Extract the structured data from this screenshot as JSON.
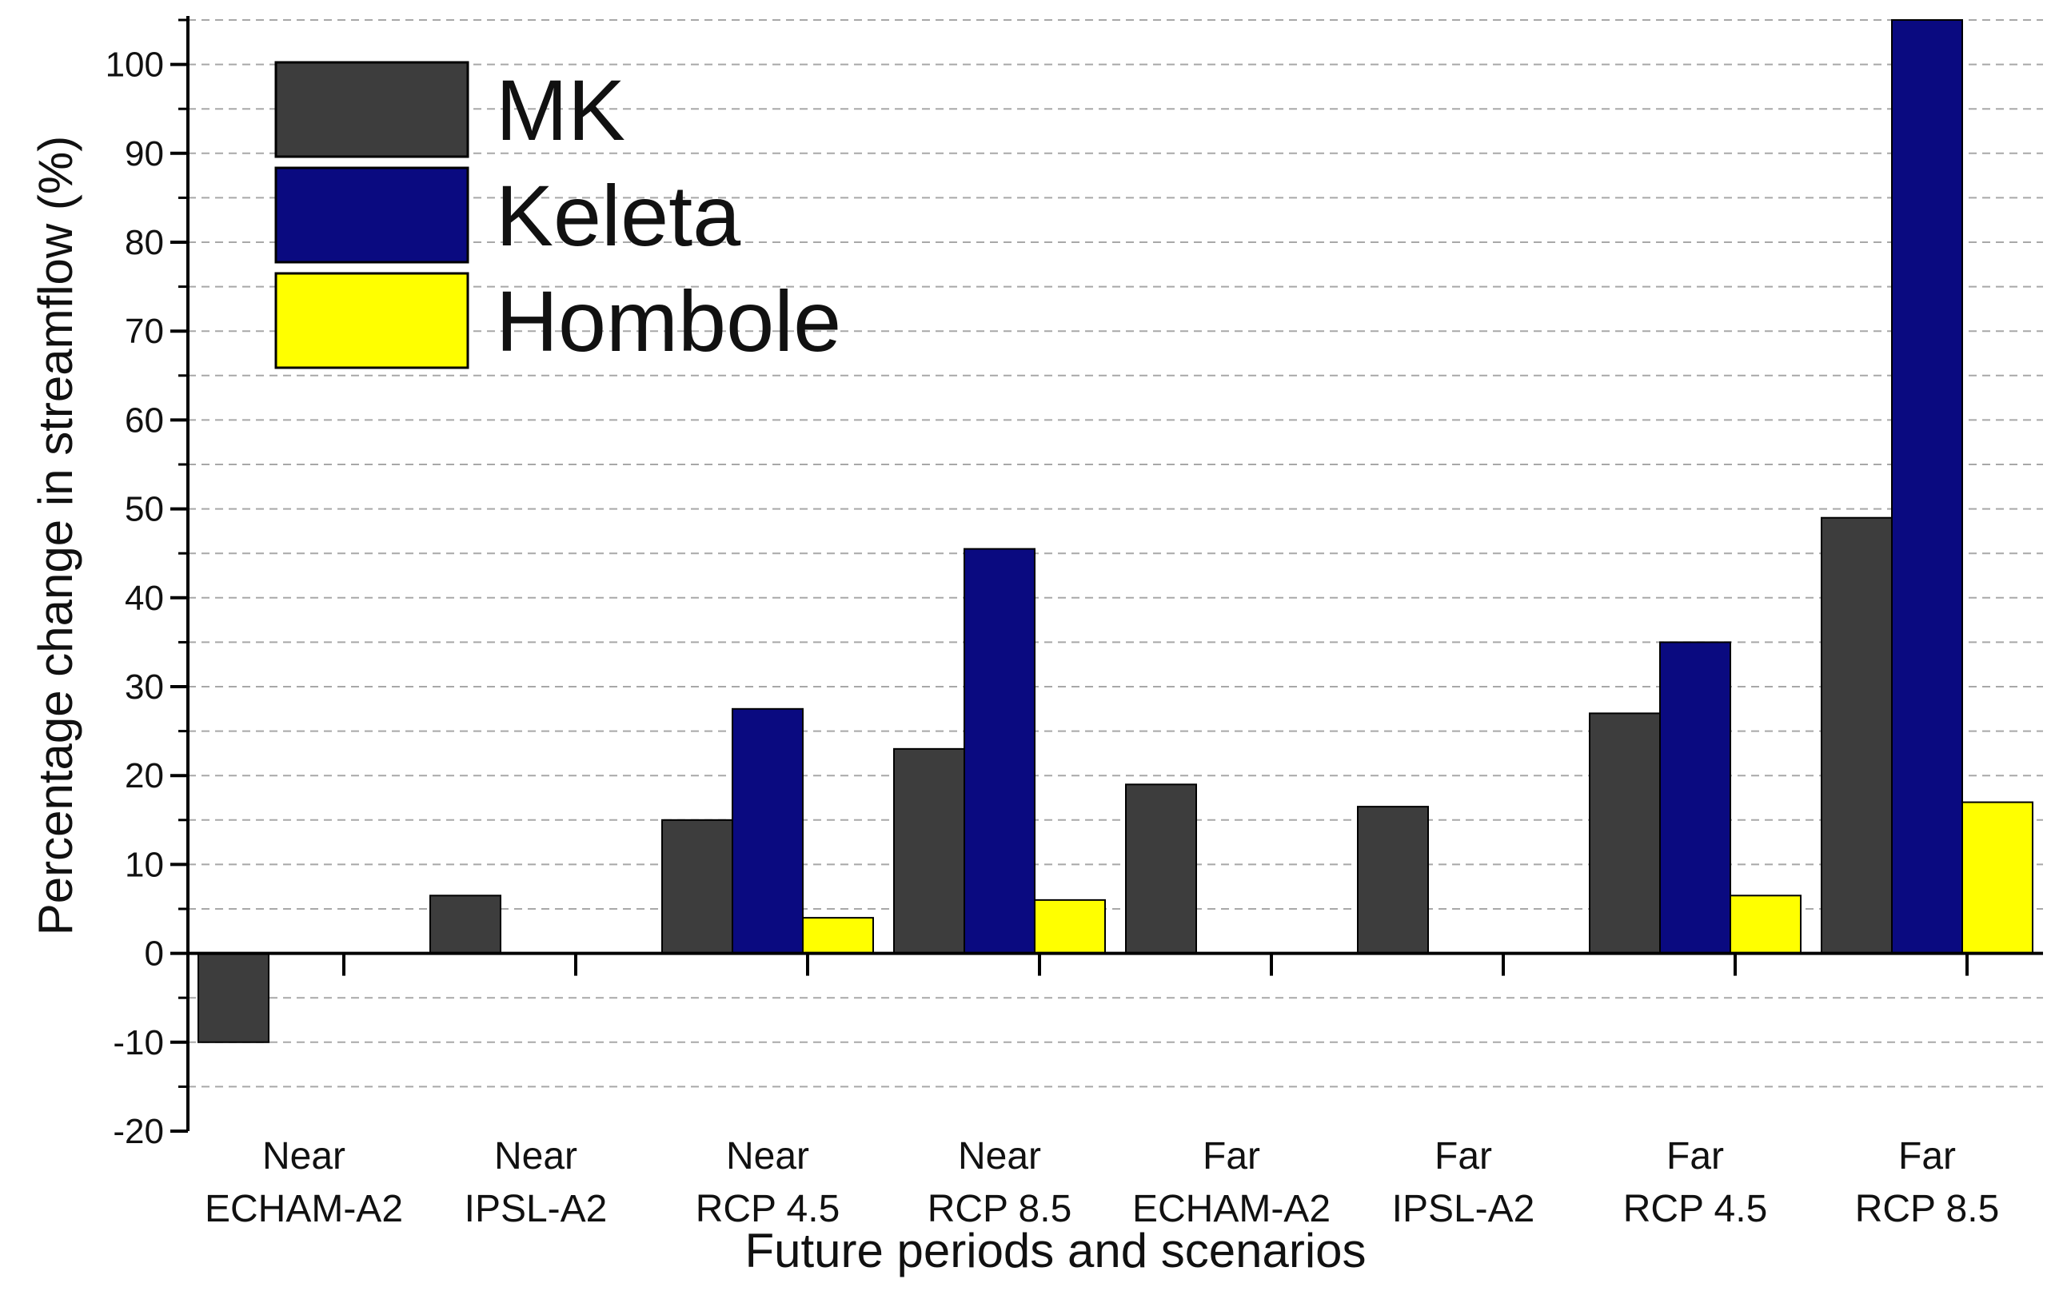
{
  "chart_data": {
    "type": "bar",
    "title": "",
    "xlabel": "Future periods and scenarios",
    "ylabel": "Percentage change in streamflow (%)",
    "ylim": [
      -20,
      105
    ],
    "yticks": [
      -20,
      -10,
      0,
      10,
      20,
      30,
      40,
      50,
      60,
      70,
      80,
      90,
      100
    ],
    "grid": true,
    "legend_position": "top-left",
    "categories": [
      {
        "line1": "Near",
        "line2": "ECHAM-A2"
      },
      {
        "line1": "Near",
        "line2": "IPSL-A2"
      },
      {
        "line1": "Near",
        "line2": "RCP 4.5"
      },
      {
        "line1": "Near",
        "line2": "RCP 8.5"
      },
      {
        "line1": "Far",
        "line2": "ECHAM-A2"
      },
      {
        "line1": "Far",
        "line2": "IPSL-A2"
      },
      {
        "line1": "Far",
        "line2": "RCP 4.5"
      },
      {
        "line1": "Far",
        "line2": "RCP 8.5"
      }
    ],
    "series": [
      {
        "name": "MK",
        "color": "#3d3d3d",
        "values": [
          -10,
          6.5,
          15,
          23,
          19,
          16.5,
          27,
          49
        ]
      },
      {
        "name": "Keleta",
        "color": "#0a0a80",
        "values": [
          null,
          null,
          27.5,
          45.5,
          null,
          null,
          35,
          105
        ]
      },
      {
        "name": "Hombole",
        "color": "#ffff00",
        "values": [
          null,
          null,
          4,
          6,
          null,
          null,
          6.5,
          17
        ]
      }
    ]
  }
}
